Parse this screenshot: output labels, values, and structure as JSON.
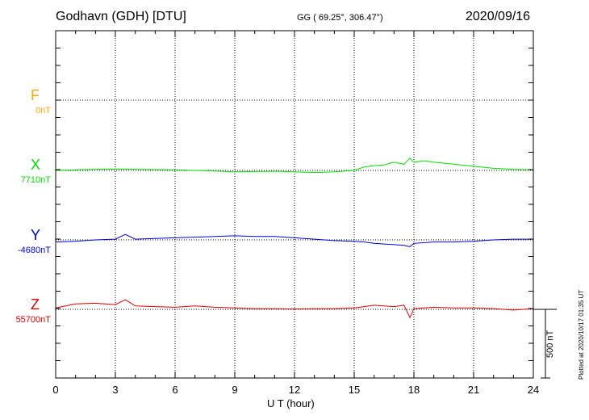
{
  "header": {
    "station": "Godhavn (GDH)  [DTU]",
    "coordinates": "GG ( 69.25°, 306.47°)",
    "date": "2020/09/16"
  },
  "components": [
    {
      "letter": "F",
      "baseline": "0nT",
      "color": "#ffa500"
    },
    {
      "letter": "X",
      "baseline": "7710nT",
      "color": "#00e000"
    },
    {
      "letter": "Y",
      "baseline": "-4680nT",
      "color": "#0000e0"
    },
    {
      "letter": "Z",
      "baseline": "55700nT",
      "color": "#e00000"
    }
  ],
  "axis": {
    "xlabel": "U T (hour)",
    "scale_label": "500 nT",
    "footer": "Plotted at 2020/10/17 01:35 UT"
  },
  "chart_data": {
    "type": "line",
    "title": "Godhavn (GDH)  [DTU]",
    "xlabel": "U T (hour)",
    "ylabel": "",
    "xlim": [
      0,
      24
    ],
    "xticks": [
      0,
      3,
      6,
      9,
      12,
      15,
      18,
      21,
      24
    ],
    "xtick_labels": [
      "0",
      "3",
      "6",
      "9",
      "12",
      "15",
      "18",
      "21",
      "24"
    ],
    "scale_bar_nT": 500,
    "grid": true,
    "series": [
      {
        "name": "F",
        "baseline_nT": 0,
        "x": [],
        "values": []
      },
      {
        "name": "X",
        "baseline_nT": 7710,
        "x": [
          0,
          1,
          2,
          3,
          4,
          5,
          6,
          7,
          8,
          9,
          10,
          11,
          12,
          13,
          14,
          15,
          15.5,
          16,
          16.5,
          17,
          17.5,
          17.8,
          18,
          18.5,
          19,
          20,
          21,
          22,
          23,
          24
        ],
        "values": [
          0,
          5,
          8,
          10,
          8,
          6,
          5,
          0,
          -5,
          -10,
          -8,
          -6,
          -10,
          -15,
          -10,
          0,
          25,
          35,
          40,
          60,
          45,
          90,
          60,
          70,
          60,
          45,
          30,
          15,
          8,
          5
        ]
      },
      {
        "name": "Y",
        "baseline_nT": -4680,
        "x": [
          0,
          1,
          2,
          3,
          3.5,
          4,
          5,
          6,
          7,
          8,
          9,
          10,
          11,
          12,
          13,
          14,
          15,
          15.5,
          16,
          16.5,
          17,
          17.5,
          17.8,
          18,
          19,
          20,
          21,
          22,
          23,
          24
        ],
        "values": [
          -15,
          -10,
          0,
          5,
          40,
          5,
          10,
          15,
          20,
          25,
          30,
          25,
          25,
          15,
          5,
          -5,
          -10,
          -15,
          -25,
          -30,
          -35,
          -40,
          -50,
          -25,
          -15,
          -15,
          -10,
          0,
          5,
          5
        ]
      },
      {
        "name": "Z",
        "baseline_nT": 55700,
        "x": [
          0,
          1,
          2,
          3,
          3.5,
          4,
          5,
          6,
          7,
          8,
          9,
          10,
          11,
          12,
          13,
          14,
          15,
          15.5,
          16,
          16.5,
          17,
          17.5,
          17.8,
          18,
          19,
          20,
          21,
          22,
          23,
          24
        ],
        "values": [
          10,
          40,
          45,
          35,
          70,
          25,
          20,
          15,
          25,
          15,
          10,
          5,
          5,
          3,
          5,
          5,
          10,
          20,
          30,
          25,
          20,
          30,
          -60,
          5,
          15,
          10,
          10,
          5,
          -5,
          5
        ]
      }
    ]
  }
}
